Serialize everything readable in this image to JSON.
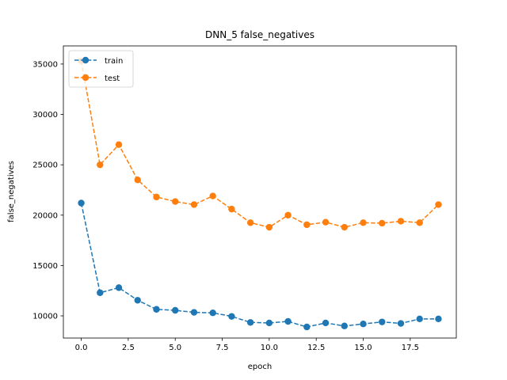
{
  "chart_data": {
    "type": "line",
    "title": "DNN_5 false_negatives",
    "xlabel": "epoch",
    "ylabel": "false_negatives",
    "xlim": [
      -0.95,
      19.95
    ],
    "ylim": [
      7800,
      36800
    ],
    "xticks": [
      0,
      2.5,
      5,
      7.5,
      10,
      12.5,
      15,
      17.5
    ],
    "xtick_labels": [
      "0.0",
      "2.5",
      "5.0",
      "7.5",
      "10.0",
      "12.5",
      "15.0",
      "17.5"
    ],
    "yticks": [
      10000,
      15000,
      20000,
      25000,
      30000,
      35000
    ],
    "ytick_labels": [
      "10000",
      "15000",
      "20000",
      "25000",
      "30000",
      "35000"
    ],
    "grid": false,
    "legend_position": "top-left",
    "x": [
      0,
      1,
      2,
      3,
      4,
      5,
      6,
      7,
      8,
      9,
      10,
      11,
      12,
      13,
      14,
      15,
      16,
      17,
      18,
      19
    ],
    "series": [
      {
        "name": "train",
        "color": "#1f77b4",
        "values": [
          21200,
          12300,
          12800,
          11550,
          10650,
          10550,
          10350,
          10300,
          9950,
          9350,
          9300,
          9450,
          8900,
          9300,
          9000,
          9200,
          9400,
          9250,
          9700,
          9700
        ]
      },
      {
        "name": "test",
        "color": "#ff7f0e",
        "values": [
          35300,
          25000,
          27000,
          23500,
          21800,
          21350,
          21050,
          21900,
          20600,
          19250,
          18800,
          20000,
          19050,
          19300,
          18800,
          19250,
          19200,
          19400,
          19250,
          21050
        ]
      }
    ]
  }
}
